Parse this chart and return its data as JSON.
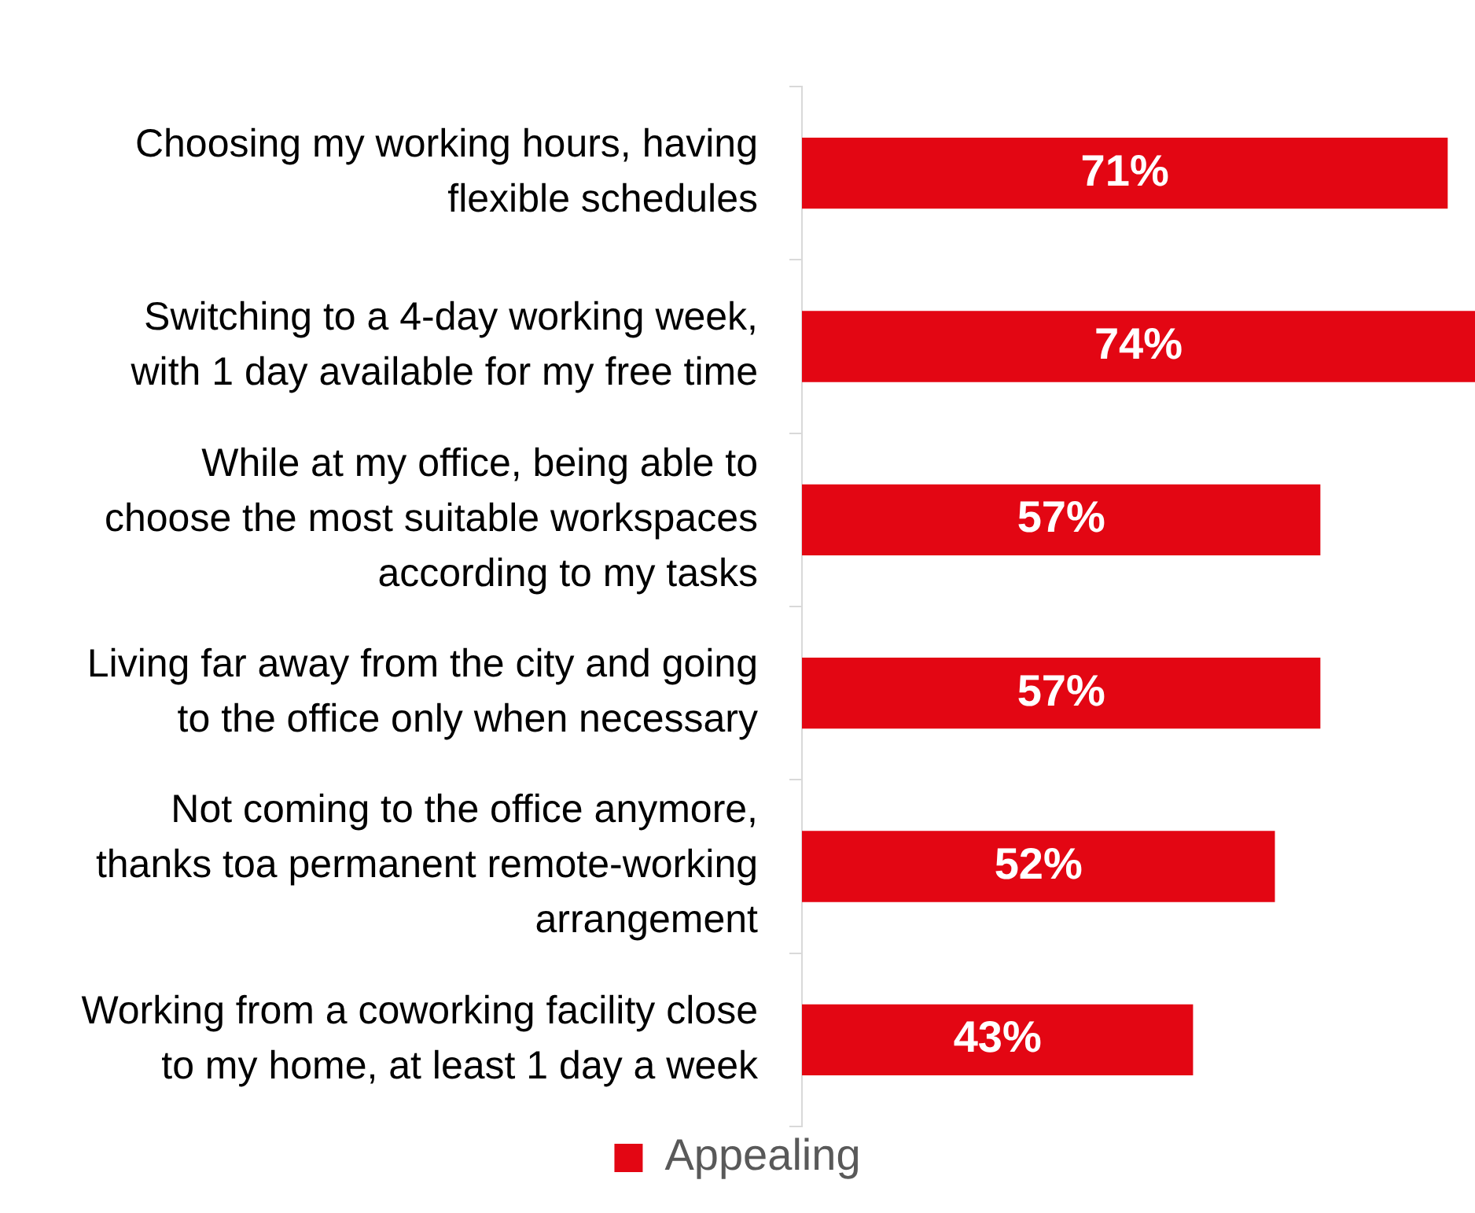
{
  "chart_data": {
    "type": "bar",
    "orientation": "horizontal",
    "categories": [
      "Choosing my working hours, having flexible schedules",
      "Switching to a 4-day working week, with 1 day available for my free time",
      "While at my office, being able to choose the most suitable workspaces according to my tasks",
      "Living far away from the city and going to the office only when necessary",
      "Not coming to the office anymore, thanks toa permanent remote-working arrangement",
      "Working from a coworking facility close to my home, at least 1 day a week"
    ],
    "series": [
      {
        "name": "Appealing",
        "color": "#e30613",
        "values": [
          71,
          74,
          57,
          57,
          52,
          43
        ],
        "value_labels": [
          "71%",
          "74%",
          "57%",
          "57%",
          "52%",
          "43%"
        ]
      }
    ],
    "legend": "bottom",
    "tick_labels": "y"
  }
}
